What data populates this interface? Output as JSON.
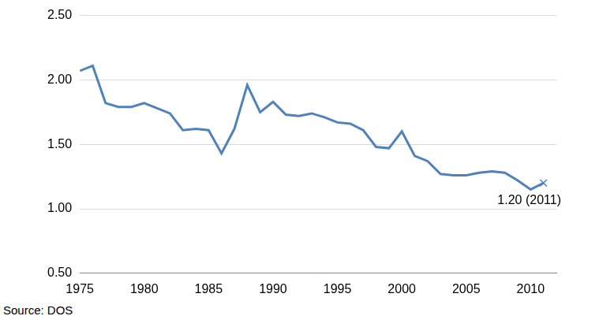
{
  "chart_data": {
    "type": "line",
    "x": [
      1975,
      1976,
      1977,
      1978,
      1979,
      1980,
      1981,
      1982,
      1983,
      1984,
      1985,
      1986,
      1987,
      1988,
      1989,
      1990,
      1991,
      1992,
      1993,
      1994,
      1995,
      1996,
      1997,
      1998,
      1999,
      2000,
      2001,
      2002,
      2003,
      2004,
      2005,
      2006,
      2007,
      2008,
      2009,
      2010,
      2011
    ],
    "values": [
      2.07,
      2.11,
      1.82,
      1.79,
      1.79,
      1.82,
      1.78,
      1.74,
      1.61,
      1.62,
      1.61,
      1.43,
      1.62,
      1.96,
      1.75,
      1.83,
      1.73,
      1.72,
      1.74,
      1.71,
      1.67,
      1.66,
      1.61,
      1.48,
      1.47,
      1.6,
      1.41,
      1.37,
      1.27,
      1.26,
      1.26,
      1.28,
      1.29,
      1.28,
      1.22,
      1.15,
      1.2
    ],
    "color": "#4f81bd",
    "xlim": [
      1975,
      2012
    ],
    "xticks": [
      1975,
      1980,
      1985,
      1990,
      1995,
      2000,
      2005,
      2010
    ],
    "ylim": [
      0.5,
      2.5
    ],
    "yticks": [
      {
        "value": 0.5,
        "label": "0.50"
      },
      {
        "value": 1,
        "label": "1.00"
      },
      {
        "value": 1.5,
        "label": "1.50"
      },
      {
        "value": 2,
        "label": "2.00"
      },
      {
        "value": 2.5,
        "label": "2.50"
      }
    ],
    "grid": true,
    "annotations": [
      {
        "x": 2011,
        "y": 1.2,
        "text": "1.20 (2011)",
        "marker": "x"
      }
    ],
    "source": "Source: DOS"
  }
}
